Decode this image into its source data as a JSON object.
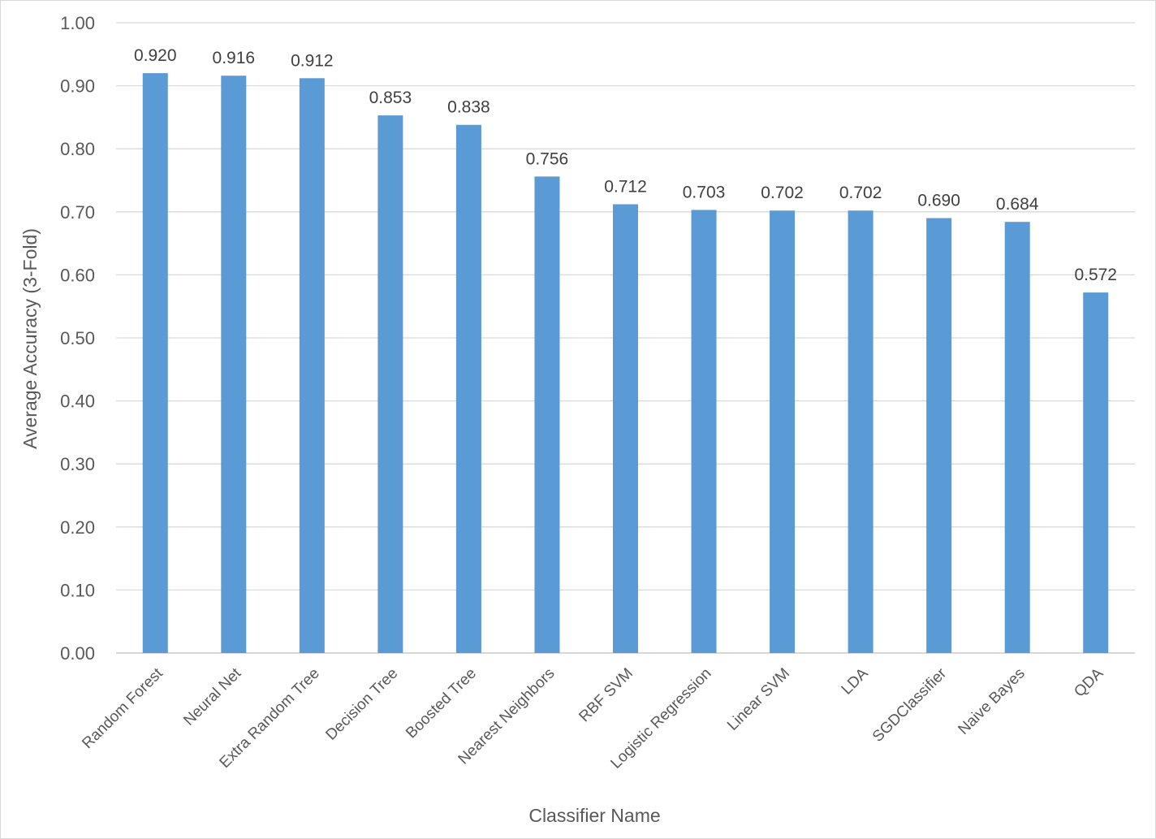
{
  "chart_data": {
    "type": "bar",
    "categories": [
      "Random Forest",
      "Neural Net",
      "Extra Random Tree",
      "Decision Tree",
      "Boosted Tree",
      "Nearest Neighbors",
      "RBF SVM",
      "Logistic Regression",
      "Linear SVM",
      "LDA",
      "SGDClassifier",
      "Naive Bayes",
      "QDA"
    ],
    "values": [
      0.92,
      0.916,
      0.912,
      0.853,
      0.838,
      0.756,
      0.712,
      0.703,
      0.702,
      0.702,
      0.69,
      0.684,
      0.572
    ],
    "data_labels": [
      "0.920",
      "0.916",
      "0.912",
      "0.853",
      "0.838",
      "0.756",
      "0.712",
      "0.703",
      "0.702",
      "0.702",
      "0.690",
      "0.684",
      "0.572"
    ],
    "title": "",
    "xlabel": "Classifier Name",
    "ylabel": "Average Accuracy (3-Fold)",
    "ylim": [
      0,
      1
    ],
    "yticks": [
      "0.00",
      "0.10",
      "0.20",
      "0.30",
      "0.40",
      "0.50",
      "0.60",
      "0.70",
      "0.80",
      "0.90",
      "1.00"
    ],
    "grid": true,
    "legend": "none",
    "bar_color": "#5b9bd5"
  }
}
